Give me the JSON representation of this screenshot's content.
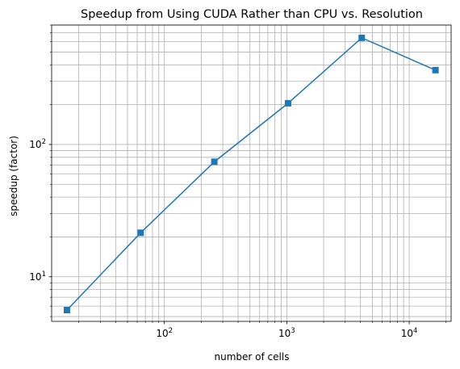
{
  "chart_data": {
    "type": "line",
    "title": "Speedup from Using CUDA Rather than CPU vs. Resolution",
    "xlabel": "number of cells",
    "ylabel": "speedup (factor)",
    "xscale": "log",
    "yscale": "log",
    "xlim": [
      12,
      22000
    ],
    "ylim": [
      4.6,
      800
    ],
    "x_ticks": [
      {
        "value": 100,
        "base": "10",
        "exp": "2"
      },
      {
        "value": 1000,
        "base": "10",
        "exp": "3"
      },
      {
        "value": 10000,
        "base": "10",
        "exp": "4"
      }
    ],
    "y_ticks": [
      {
        "value": 10,
        "base": "10",
        "exp": "1"
      },
      {
        "value": 100,
        "base": "10",
        "exp": "2"
      }
    ],
    "grid": true,
    "series": [
      {
        "marker": "square",
        "color": "#1f77b4",
        "x": [
          16,
          64,
          256,
          1024,
          4096,
          16384
        ],
        "y": [
          5.6,
          21.5,
          74,
          205,
          640,
          365
        ]
      }
    ]
  }
}
